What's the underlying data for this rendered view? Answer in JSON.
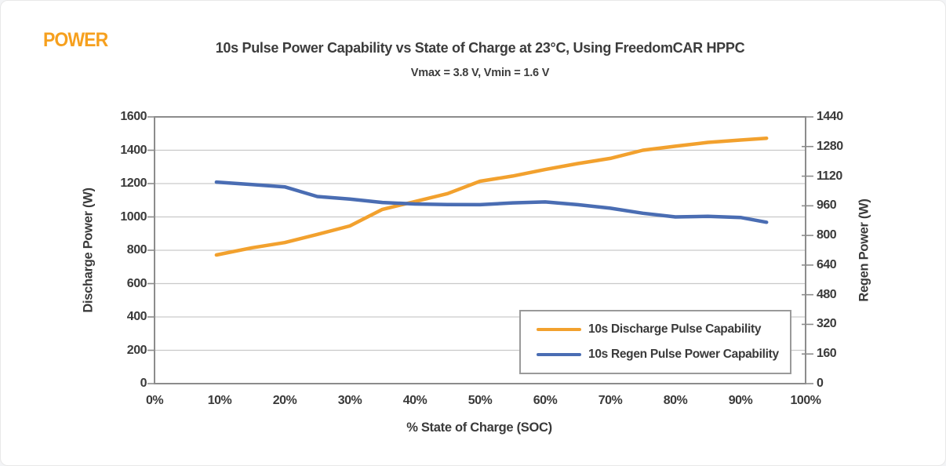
{
  "brand": {
    "logo_text": "POWER",
    "logo_color": "#F6A01E"
  },
  "palette": {
    "grid_color": "#C9C9C9",
    "axis_color": "#8C8C8C",
    "text_color": "#3C3C3C"
  },
  "chart_data": {
    "type": "line",
    "title": "10s Pulse Power Capability vs State of Charge at 23°C, Using FreedomCAR HPPC",
    "subtitle": "Vmax = 3.8 V, Vmin = 1.6 V",
    "xlabel": "% State of Charge (SOC)",
    "ylabel_left": "Discharge Power (W)",
    "ylabel_right": "Regen Power (W)",
    "x_range": [
      0,
      100
    ],
    "x_tick_labels": [
      "0%",
      "10%",
      "20%",
      "30%",
      "40%",
      "50%",
      "60%",
      "70%",
      "80%",
      "90%",
      "100%"
    ],
    "y_left": {
      "min": 0,
      "max": 1600,
      "step": 200
    },
    "y_right": {
      "min": 0,
      "max": 1440,
      "step": 160
    },
    "y_left_tick_labels": [
      "0",
      "200",
      "400",
      "600",
      "800",
      "1000",
      "1200",
      "1400",
      "1600"
    ],
    "y_right_tick_labels": [
      "0",
      "160",
      "320",
      "480",
      "640",
      "800",
      "960",
      "1120",
      "1280",
      "1440"
    ],
    "grid": true,
    "legend_position": "inside-bottom-right",
    "series": [
      {
        "name": "10s Discharge Pulse Capability",
        "axis": "left",
        "color": "#F2A12E",
        "soc": [
          9.5,
          15,
          20,
          25,
          30,
          35,
          40,
          45,
          50,
          55,
          60,
          65,
          70,
          75,
          80,
          85,
          90,
          94
        ],
        "watts": [
          772,
          815,
          846,
          895,
          946,
          1045,
          1092,
          1140,
          1214,
          1245,
          1284,
          1320,
          1351,
          1400,
          1424,
          1447,
          1461,
          1472
        ]
      },
      {
        "name": "10s Regen Pulse Power Capability",
        "axis": "right",
        "color": "#4A6DB3",
        "soc": [
          9.5,
          15,
          20,
          25,
          30,
          35,
          40,
          45,
          50,
          55,
          60,
          65,
          70,
          75,
          80,
          85,
          90,
          94
        ],
        "watts": [
          1088,
          1075,
          1062,
          1010,
          996,
          978,
          970,
          967,
          966,
          976,
          981,
          966,
          947,
          920,
          900,
          903,
          897,
          871
        ]
      }
    ]
  }
}
